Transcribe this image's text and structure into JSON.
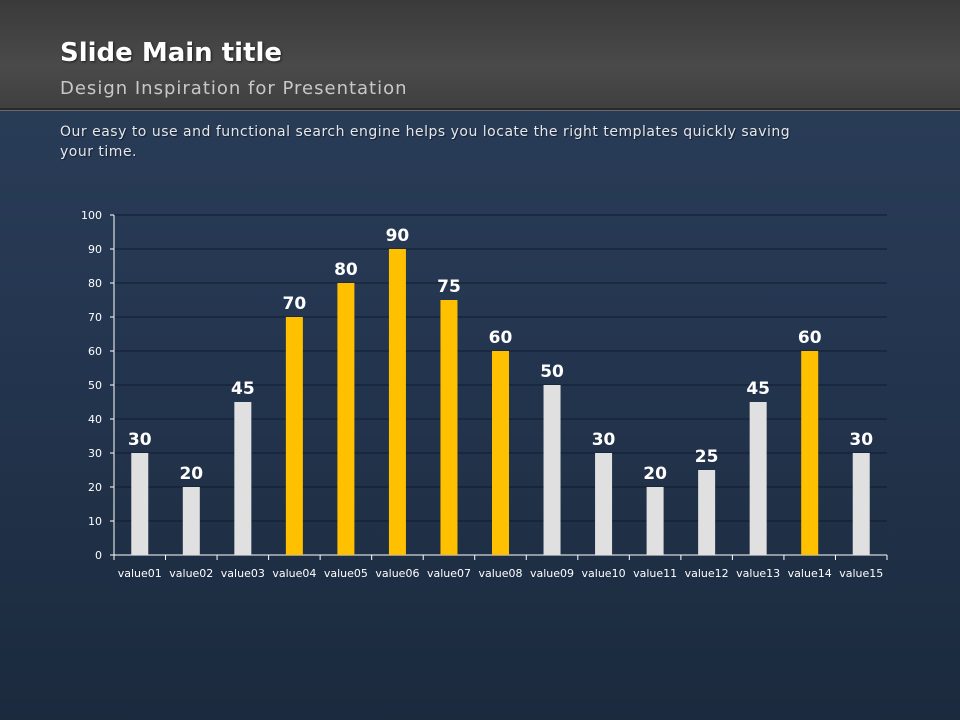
{
  "header": {
    "title": "Slide Main title",
    "subtitle": "Design Inspiration for Presentation"
  },
  "description": "Our easy to use and functional search engine helps you locate the right templates quickly saving your time.",
  "colors": {
    "highlight_bar": "#ffc000",
    "normal_bar": "#e0e0e0",
    "gridline": "#0f1c30",
    "axis": "#ffffff"
  },
  "chart_data": {
    "type": "bar",
    "categories": [
      "value01",
      "value02",
      "value03",
      "value04",
      "value05",
      "value06",
      "value07",
      "value08",
      "value09",
      "value10",
      "value11",
      "value12",
      "value13",
      "value14",
      "value15"
    ],
    "values": [
      30,
      20,
      45,
      70,
      80,
      90,
      75,
      60,
      50,
      30,
      20,
      25,
      45,
      60,
      30
    ],
    "highlighted": [
      false,
      false,
      false,
      true,
      true,
      true,
      true,
      true,
      false,
      false,
      false,
      false,
      false,
      true,
      false
    ],
    "data_labels": true,
    "ylim": [
      0,
      100
    ],
    "yticks": [
      0,
      10,
      20,
      30,
      40,
      50,
      60,
      70,
      80,
      90,
      100
    ],
    "grid": true,
    "title": "",
    "xlabel": "",
    "ylabel": ""
  }
}
